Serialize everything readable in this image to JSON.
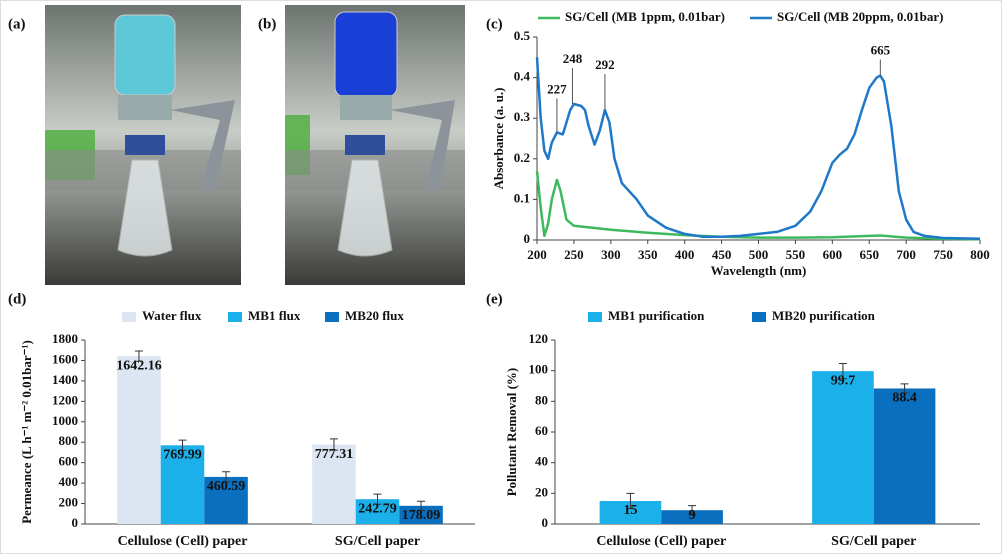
{
  "photos": [
    {
      "label": "(a)"
    },
    {
      "label": "(b)"
    }
  ],
  "chart_data": [
    {
      "type": "line",
      "label": "(c)",
      "xlabel": "Wavelength (nm)",
      "ylabel": "Absorbance (a. u.)",
      "xlim": [
        200,
        800
      ],
      "xticks": [
        200,
        250,
        300,
        350,
        400,
        450,
        500,
        550,
        600,
        650,
        700,
        750,
        800
      ],
      "ylim": [
        0,
        0.5
      ],
      "yticks": [
        0,
        0.1,
        0.2,
        0.3,
        0.4,
        0.5
      ],
      "series": [
        {
          "name": "SG/Cell (MB 1ppm, 0.01bar)",
          "color": "#3dba5c",
          "x": [
            200,
            205,
            210,
            215,
            220,
            227,
            232,
            240,
            250,
            275,
            300,
            350,
            400,
            450,
            500,
            550,
            600,
            650,
            665,
            700,
            750,
            800
          ],
          "values": [
            0.17,
            0.08,
            0.01,
            0.04,
            0.1,
            0.148,
            0.12,
            0.05,
            0.035,
            0.03,
            0.025,
            0.018,
            0.012,
            0.008,
            0.006,
            0.006,
            0.007,
            0.01,
            0.011,
            0.006,
            0.003,
            0.002
          ]
        },
        {
          "name": "SG/Cell (MB 20ppm, 0.01bar)",
          "color": "#1f78c8",
          "x": [
            200,
            205,
            210,
            215,
            220,
            227,
            235,
            245,
            250,
            260,
            265,
            270,
            278,
            285,
            292,
            298,
            305,
            315,
            325,
            335,
            350,
            375,
            400,
            425,
            450,
            475,
            500,
            525,
            550,
            570,
            585,
            600,
            610,
            620,
            630,
            640,
            650,
            660,
            665,
            670,
            680,
            690,
            700,
            710,
            725,
            750,
            800
          ],
          "values": [
            0.45,
            0.3,
            0.22,
            0.2,
            0.24,
            0.265,
            0.26,
            0.32,
            0.335,
            0.33,
            0.32,
            0.28,
            0.235,
            0.27,
            0.32,
            0.29,
            0.2,
            0.14,
            0.12,
            0.1,
            0.06,
            0.03,
            0.015,
            0.008,
            0.008,
            0.01,
            0.015,
            0.02,
            0.035,
            0.07,
            0.12,
            0.19,
            0.21,
            0.225,
            0.26,
            0.32,
            0.375,
            0.4,
            0.405,
            0.39,
            0.28,
            0.12,
            0.05,
            0.02,
            0.01,
            0.005,
            0.003
          ]
        }
      ],
      "annotations": [
        {
          "label": "227",
          "x": 227,
          "y": 0.265
        },
        {
          "label": "248",
          "x": 248,
          "y": 0.335
        },
        {
          "label": "292",
          "x": 292,
          "y": 0.32
        },
        {
          "label": "665",
          "x": 665,
          "y": 0.405
        }
      ]
    },
    {
      "type": "bar",
      "label": "(d)",
      "ylabel": "Permeance (L h⁻¹ m⁻² 0.01bar⁻¹)",
      "categories": [
        "Cellulose (Cell) paper",
        "SG/Cell paper"
      ],
      "ylim": [
        0,
        1800
      ],
      "yticks": [
        0,
        200,
        400,
        600,
        800,
        1000,
        1200,
        1400,
        1600,
        1800
      ],
      "series": [
        {
          "name": "Water flux",
          "color": "#dce6f2",
          "values": [
            1642.16,
            777.31
          ],
          "errors": [
            50,
            55
          ]
        },
        {
          "name": "MB1 flux",
          "color": "#1cb0ea",
          "values": [
            769.99,
            242.79
          ],
          "errors": [
            50,
            50
          ]
        },
        {
          "name": "MB20 flux",
          "color": "#0b6fbf",
          "values": [
            460.59,
            178.09
          ],
          "errors": [
            50,
            45
          ]
        }
      ]
    },
    {
      "type": "bar",
      "label": "(e)",
      "ylabel": "Pollutant Removal (%)",
      "categories": [
        "Cellulose (Cell) paper",
        "SG/Cell paper"
      ],
      "ylim": [
        0,
        120
      ],
      "yticks": [
        0,
        20,
        40,
        60,
        80,
        100,
        120
      ],
      "series": [
        {
          "name": "MB1 purification",
          "color": "#1cb0ea",
          "values": [
            15,
            99.7
          ],
          "errors": [
            5,
            5
          ]
        },
        {
          "name": "MB20 purification",
          "color": "#0b6fbf",
          "values": [
            9,
            88.4
          ],
          "errors": [
            3,
            3
          ]
        }
      ]
    }
  ]
}
